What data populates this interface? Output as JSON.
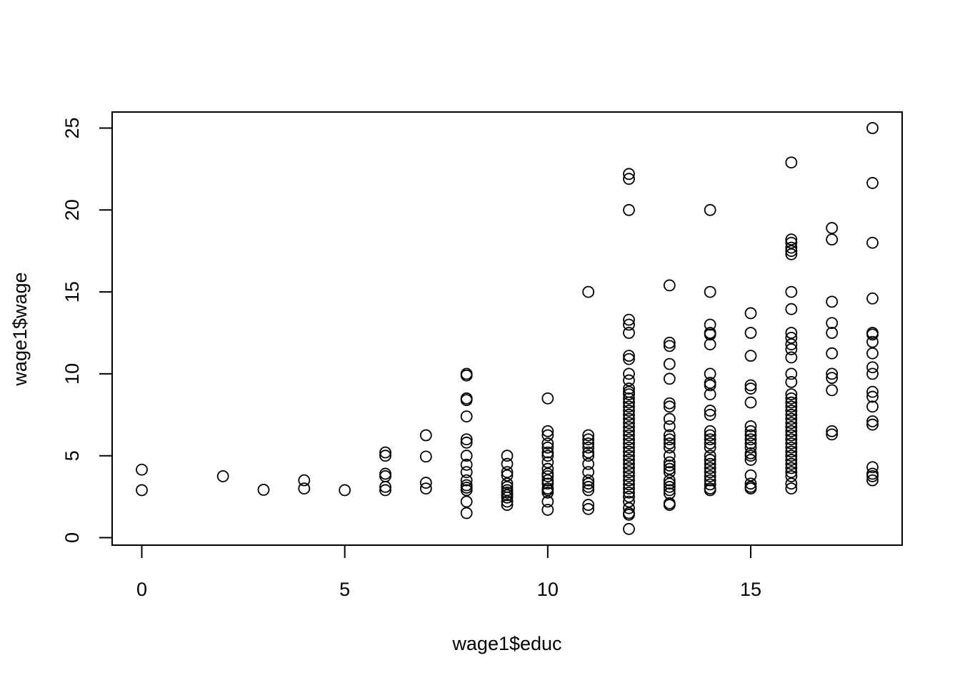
{
  "chart_data": {
    "type": "scatter",
    "title": "",
    "xlabel": "wage1$educ",
    "ylabel": "wage1$wage",
    "xlim": [
      0,
      18
    ],
    "ylim": [
      0,
      25
    ],
    "xticks": [
      0,
      5,
      10,
      15
    ],
    "yticks": [
      0,
      5,
      10,
      15,
      20,
      25
    ],
    "grid": false,
    "legend": "none",
    "marker": "open-circle",
    "point_color": "#000000",
    "points": [
      [
        0,
        4.15
      ],
      [
        0,
        2.9
      ],
      [
        2,
        3.75
      ],
      [
        3,
        2.92
      ],
      [
        4,
        3.5
      ],
      [
        4,
        3.0
      ],
      [
        5,
        2.9
      ],
      [
        6,
        5.2
      ],
      [
        6,
        5.0
      ],
      [
        6,
        3.9
      ],
      [
        6,
        3.75
      ],
      [
        6,
        3.1
      ],
      [
        6,
        2.9
      ],
      [
        7,
        6.25
      ],
      [
        7,
        4.95
      ],
      [
        7,
        3.35
      ],
      [
        7,
        3.0
      ],
      [
        8,
        10.0
      ],
      [
        8,
        9.9
      ],
      [
        8,
        8.5
      ],
      [
        8,
        8.4
      ],
      [
        8,
        7.4
      ],
      [
        8,
        6.0
      ],
      [
        8,
        5.8
      ],
      [
        8,
        5.0
      ],
      [
        8,
        4.45
      ],
      [
        8,
        4.0
      ],
      [
        8,
        3.5
      ],
      [
        8,
        3.2
      ],
      [
        8,
        3.05
      ],
      [
        8,
        2.9
      ],
      [
        8,
        2.2
      ],
      [
        8,
        1.5
      ],
      [
        9,
        5.0
      ],
      [
        9,
        4.5
      ],
      [
        9,
        4.0
      ],
      [
        9,
        3.8
      ],
      [
        9,
        3.3
      ],
      [
        9,
        3.1
      ],
      [
        9,
        2.9
      ],
      [
        9,
        2.75
      ],
      [
        9,
        2.6
      ],
      [
        9,
        2.45
      ],
      [
        9,
        2.2
      ],
      [
        9,
        2.0
      ],
      [
        10,
        8.5
      ],
      [
        10,
        6.5
      ],
      [
        10,
        6.25
      ],
      [
        10,
        5.75
      ],
      [
        10,
        5.5
      ],
      [
        10,
        5.2
      ],
      [
        10,
        5.0
      ],
      [
        10,
        4.6
      ],
      [
        10,
        4.2
      ],
      [
        10,
        3.9
      ],
      [
        10,
        3.75
      ],
      [
        10,
        3.5
      ],
      [
        10,
        3.3
      ],
      [
        10,
        3.0
      ],
      [
        10,
        2.9
      ],
      [
        10,
        2.75
      ],
      [
        10,
        2.2
      ],
      [
        10,
        1.7
      ],
      [
        11,
        15.0
      ],
      [
        11,
        6.25
      ],
      [
        11,
        6.0
      ],
      [
        11,
        5.75
      ],
      [
        11,
        5.5
      ],
      [
        11,
        5.2
      ],
      [
        11,
        5.0
      ],
      [
        11,
        4.5
      ],
      [
        11,
        4.0
      ],
      [
        11,
        3.5
      ],
      [
        11,
        3.3
      ],
      [
        11,
        3.1
      ],
      [
        11,
        2.9
      ],
      [
        11,
        2.0
      ],
      [
        11,
        1.75
      ],
      [
        12,
        22.2
      ],
      [
        12,
        21.9
      ],
      [
        12,
        20.0
      ],
      [
        12,
        13.3
      ],
      [
        12,
        13.0
      ],
      [
        12,
        12.5
      ],
      [
        12,
        11.1
      ],
      [
        12,
        10.9
      ],
      [
        12,
        10.0
      ],
      [
        12,
        9.6
      ],
      [
        12,
        9.1
      ],
      [
        12,
        8.9
      ],
      [
        12,
        8.75
      ],
      [
        12,
        8.5
      ],
      [
        12,
        8.25
      ],
      [
        12,
        8.0
      ],
      [
        12,
        7.75
      ],
      [
        12,
        7.5
      ],
      [
        12,
        7.25
      ],
      [
        12,
        7.0
      ],
      [
        12,
        6.75
      ],
      [
        12,
        6.5
      ],
      [
        12,
        6.25
      ],
      [
        12,
        6.0
      ],
      [
        12,
        5.75
      ],
      [
        12,
        5.5
      ],
      [
        12,
        5.25
      ],
      [
        12,
        5.0
      ],
      [
        12,
        4.75
      ],
      [
        12,
        4.5
      ],
      [
        12,
        4.25
      ],
      [
        12,
        4.0
      ],
      [
        12,
        3.75
      ],
      [
        12,
        3.5
      ],
      [
        12,
        3.25
      ],
      [
        12,
        3.0
      ],
      [
        12,
        2.75
      ],
      [
        12,
        2.5
      ],
      [
        12,
        2.2
      ],
      [
        12,
        1.8
      ],
      [
        12,
        1.5
      ],
      [
        12,
        1.4
      ],
      [
        12,
        0.53
      ],
      [
        13,
        15.4
      ],
      [
        13,
        11.9
      ],
      [
        13,
        11.7
      ],
      [
        13,
        10.6
      ],
      [
        13,
        9.7
      ],
      [
        13,
        8.2
      ],
      [
        13,
        8.0
      ],
      [
        13,
        7.25
      ],
      [
        13,
        6.8
      ],
      [
        13,
        6.25
      ],
      [
        13,
        6.0
      ],
      [
        13,
        5.75
      ],
      [
        13,
        5.5
      ],
      [
        13,
        5.0
      ],
      [
        13,
        4.6
      ],
      [
        13,
        4.4
      ],
      [
        13,
        4.2
      ],
      [
        13,
        4.0
      ],
      [
        13,
        3.5
      ],
      [
        13,
        3.3
      ],
      [
        13,
        3.1
      ],
      [
        13,
        2.9
      ],
      [
        13,
        2.7
      ],
      [
        13,
        2.1
      ],
      [
        13,
        2.0
      ],
      [
        14,
        20.0
      ],
      [
        14,
        15.0
      ],
      [
        14,
        13.0
      ],
      [
        14,
        12.5
      ],
      [
        14,
        12.4
      ],
      [
        14,
        11.8
      ],
      [
        14,
        10.0
      ],
      [
        14,
        9.45
      ],
      [
        14,
        9.3
      ],
      [
        14,
        8.75
      ],
      [
        14,
        7.75
      ],
      [
        14,
        7.5
      ],
      [
        14,
        6.5
      ],
      [
        14,
        6.25
      ],
      [
        14,
        6.0
      ],
      [
        14,
        5.75
      ],
      [
        14,
        5.5
      ],
      [
        14,
        5.0
      ],
      [
        14,
        4.75
      ],
      [
        14,
        4.5
      ],
      [
        14,
        4.25
      ],
      [
        14,
        4.0
      ],
      [
        14,
        3.75
      ],
      [
        14,
        3.5
      ],
      [
        14,
        3.25
      ],
      [
        14,
        3.0
      ],
      [
        14,
        2.9
      ],
      [
        15,
        13.7
      ],
      [
        15,
        12.5
      ],
      [
        15,
        11.1
      ],
      [
        15,
        9.3
      ],
      [
        15,
        9.1
      ],
      [
        15,
        8.25
      ],
      [
        15,
        6.8
      ],
      [
        15,
        6.5
      ],
      [
        15,
        6.25
      ],
      [
        15,
        6.0
      ],
      [
        15,
        5.75
      ],
      [
        15,
        5.5
      ],
      [
        15,
        5.15
      ],
      [
        15,
        5.0
      ],
      [
        15,
        4.75
      ],
      [
        15,
        3.8
      ],
      [
        15,
        3.3
      ],
      [
        15,
        3.1
      ],
      [
        15,
        3.0
      ],
      [
        16,
        22.9
      ],
      [
        16,
        18.2
      ],
      [
        16,
        18.0
      ],
      [
        16,
        17.7
      ],
      [
        16,
        17.5
      ],
      [
        16,
        17.3
      ],
      [
        16,
        15.0
      ],
      [
        16,
        13.95
      ],
      [
        16,
        12.5
      ],
      [
        16,
        12.2
      ],
      [
        16,
        11.8
      ],
      [
        16,
        11.5
      ],
      [
        16,
        11.0
      ],
      [
        16,
        10.0
      ],
      [
        16,
        9.5
      ],
      [
        16,
        8.75
      ],
      [
        16,
        8.5
      ],
      [
        16,
        8.25
      ],
      [
        16,
        8.0
      ],
      [
        16,
        7.75
      ],
      [
        16,
        7.5
      ],
      [
        16,
        7.25
      ],
      [
        16,
        7.0
      ],
      [
        16,
        6.75
      ],
      [
        16,
        6.5
      ],
      [
        16,
        6.25
      ],
      [
        16,
        6.0
      ],
      [
        16,
        5.75
      ],
      [
        16,
        5.5
      ],
      [
        16,
        5.25
      ],
      [
        16,
        5.0
      ],
      [
        16,
        4.75
      ],
      [
        16,
        4.5
      ],
      [
        16,
        4.25
      ],
      [
        16,
        4.0
      ],
      [
        16,
        3.75
      ],
      [
        16,
        3.3
      ],
      [
        16,
        3.0
      ],
      [
        17,
        18.9
      ],
      [
        17,
        18.2
      ],
      [
        17,
        14.4
      ],
      [
        17,
        13.1
      ],
      [
        17,
        12.5
      ],
      [
        17,
        11.25
      ],
      [
        17,
        10.0
      ],
      [
        17,
        9.75
      ],
      [
        17,
        9.0
      ],
      [
        17,
        6.5
      ],
      [
        17,
        6.3
      ],
      [
        18,
        25.0
      ],
      [
        18,
        21.65
      ],
      [
        18,
        18.0
      ],
      [
        18,
        14.6
      ],
      [
        18,
        12.5
      ],
      [
        18,
        12.4
      ],
      [
        18,
        11.95
      ],
      [
        18,
        11.25
      ],
      [
        18,
        10.4
      ],
      [
        18,
        10.0
      ],
      [
        18,
        8.9
      ],
      [
        18,
        8.6
      ],
      [
        18,
        8.0
      ],
      [
        18,
        7.1
      ],
      [
        18,
        6.9
      ],
      [
        18,
        4.3
      ],
      [
        18,
        3.9
      ],
      [
        18,
        3.75
      ],
      [
        18,
        3.5
      ]
    ]
  }
}
